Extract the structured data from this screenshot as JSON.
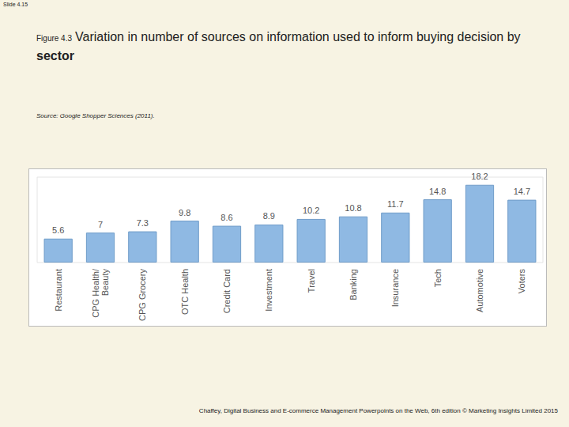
{
  "slide_label": "Slide 4.15",
  "figure_label": "Figure 4.3",
  "source": "Source: Google Shopper Sciences (2011).",
  "footer": "Chaffey, Digital Business and E-commerce Management Powerpoints on the Web, 6th edition © Marketing Insights Limited 2015",
  "chart_data": {
    "type": "bar",
    "title": "Variation in number of sources on information used to inform buying decision by sector",
    "categories": [
      "Restaurant",
      "CPG Health/\nBeauty",
      "CPG Grocery",
      "OTC Health",
      "Credit Card",
      "Investment",
      "Travel",
      "Banking",
      "Insurance",
      "Tech",
      "Automotive",
      "Voters"
    ],
    "values": [
      5.6,
      7,
      7.3,
      9.8,
      8.6,
      8.9,
      10.2,
      10.8,
      11.7,
      14.8,
      18.2,
      14.7
    ],
    "color": "#8fb9e3",
    "ylim": [
      0,
      20
    ],
    "grid": false,
    "data_labels": true,
    "tick_labels": "x"
  }
}
